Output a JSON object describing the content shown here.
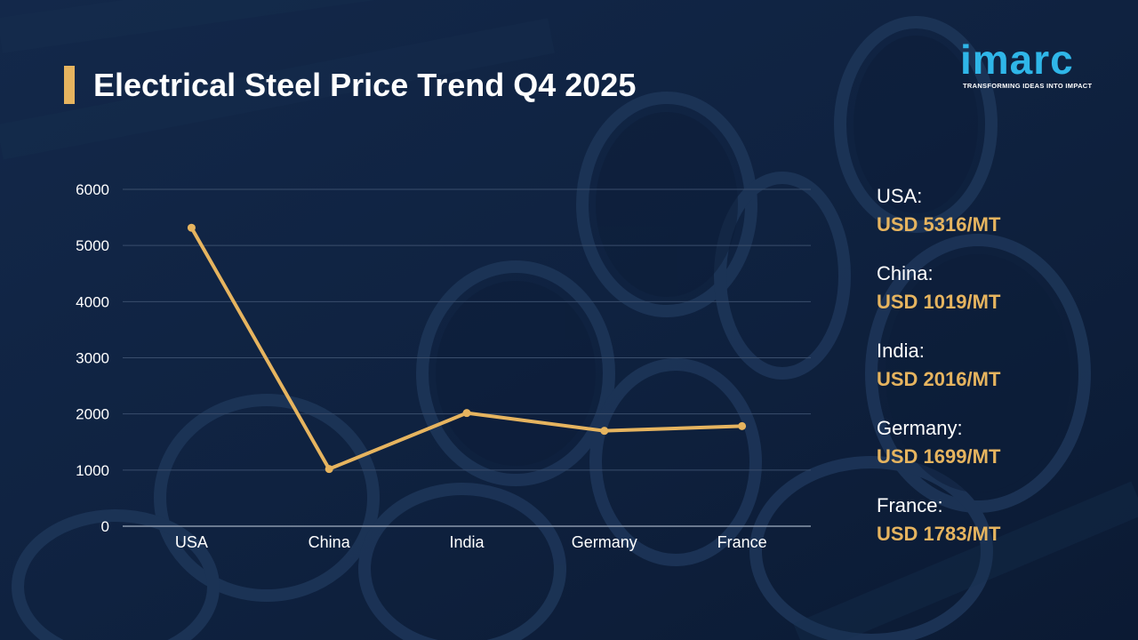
{
  "title": "Electrical Steel Price Trend Q4 2025",
  "logo": {
    "wordmark": "imarc",
    "tagline": "TRANSFORMING IDEAS INTO IMPACT"
  },
  "colors": {
    "background": "#0f2240",
    "accent": "#e6b45f",
    "line": "#e6b45f",
    "logo": "#2fb6e8"
  },
  "chart_data": {
    "type": "line",
    "title": "",
    "xlabel": "",
    "ylabel": "",
    "categories": [
      "USA",
      "China",
      "India",
      "Germany",
      "France"
    ],
    "series": [
      {
        "values": [
          5316,
          1019,
          2016,
          1699,
          1783
        ]
      }
    ],
    "ylim": [
      0,
      6000
    ],
    "yticks": [
      "0",
      "1000",
      "2000",
      "3000",
      "4000",
      "5000",
      "6000"
    ],
    "grid": true,
    "legend": "none"
  },
  "price_panel": [
    {
      "country": "USA:",
      "price": "USD 5316/MT"
    },
    {
      "country": "China:",
      "price": "USD 1019/MT"
    },
    {
      "country": "India:",
      "price": "USD 2016/MT"
    },
    {
      "country": "Germany:",
      "price": "USD 1699/MT"
    },
    {
      "country": "France:",
      "price": "USD 1783/MT"
    }
  ]
}
